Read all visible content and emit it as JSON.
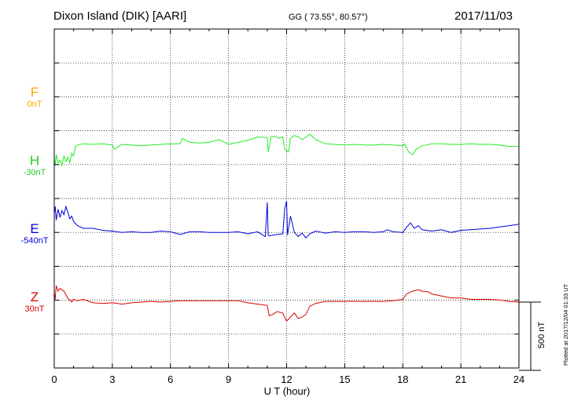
{
  "header": {
    "station": "Dixon Island (DIK)  [AARI]",
    "coords": "GG ( 73.55°,  80.57°)",
    "date": "2017/11/03"
  },
  "plotted_note": "Plotted at 2017/12/04 01:33 UT",
  "chart_data": {
    "type": "line",
    "xlabel": "U T (hour)",
    "xlim": [
      0,
      24
    ],
    "xticks": [
      0,
      3,
      6,
      9,
      12,
      15,
      18,
      21,
      24
    ],
    "scale_bar": {
      "label": "500 nT",
      "value": 500
    },
    "series": [
      {
        "name": "F",
        "baseline": "0nT",
        "color": "#ffa500",
        "offset_nT": 0,
        "x": [],
        "y": []
      },
      {
        "name": "H",
        "baseline": "-30nT",
        "color": "#22ee22",
        "offset_nT": -400,
        "x": [
          0,
          0.05,
          0.1,
          0.2,
          0.3,
          0.4,
          0.5,
          0.6,
          0.7,
          0.8,
          0.9,
          1.0,
          1.1,
          1.2,
          1.5,
          2,
          2.5,
          3,
          3.1,
          3.5,
          4,
          4.5,
          5,
          5.5,
          6,
          6.5,
          6.6,
          7,
          7.5,
          8,
          8.5,
          9,
          9.5,
          10,
          10.5,
          11,
          11.05,
          11.2,
          11.4,
          11.6,
          11.8,
          11.9,
          12,
          12.1,
          12.2,
          12.4,
          12.6,
          12.8,
          13,
          13.2,
          13.5,
          14,
          14.5,
          15,
          15.5,
          16,
          16.5,
          17,
          17.5,
          18,
          18.1,
          18.3,
          18.5,
          18.7,
          19,
          19.5,
          20,
          20.5,
          21,
          21.5,
          22,
          22.5,
          23,
          23.5,
          24
        ],
        "y": [
          -450,
          -500,
          -420,
          -480,
          -460,
          -500,
          -430,
          -470,
          -440,
          -480,
          -410,
          -430,
          -360,
          -350,
          -340,
          -345,
          -340,
          -350,
          -380,
          -345,
          -350,
          -355,
          -350,
          -345,
          -340,
          -340,
          -300,
          -330,
          -335,
          -330,
          -310,
          -345,
          -330,
          -315,
          -290,
          -295,
          -400,
          -290,
          -285,
          -300,
          -290,
          -380,
          -390,
          -400,
          -300,
          -280,
          -290,
          -310,
          -290,
          -270,
          -310,
          -340,
          -345,
          -350,
          -345,
          -350,
          -350,
          -345,
          -350,
          -355,
          -340,
          -400,
          -420,
          -380,
          -355,
          -340,
          -340,
          -345,
          -345,
          -340,
          -345,
          -345,
          -350,
          -360,
          -360
        ]
      },
      {
        "name": "E",
        "baseline": "-540nT",
        "color": "#0000dd",
        "offset_nT": -1000,
        "x": [
          0,
          0.05,
          0.1,
          0.2,
          0.3,
          0.4,
          0.5,
          0.6,
          0.7,
          0.8,
          0.9,
          1.0,
          1.2,
          1.5,
          2,
          2.5,
          3,
          3.5,
          4,
          4.5,
          5,
          5.5,
          6,
          6.5,
          7,
          7.5,
          8,
          8.5,
          9,
          9.5,
          10,
          10.5,
          10.9,
          11,
          11.05,
          11.1,
          11.5,
          11.8,
          11.9,
          12,
          12.05,
          12.2,
          12.4,
          12.6,
          12.8,
          13,
          13.2,
          13.5,
          14,
          14.5,
          15,
          15.5,
          16,
          16.5,
          17,
          17.2,
          17.5,
          18,
          18.2,
          18.4,
          18.6,
          18.8,
          19,
          19.5,
          20,
          20.5,
          21,
          21.5,
          22,
          22.5,
          23,
          23.5,
          24
        ],
        "y": [
          -850,
          -800,
          -900,
          -820,
          -880,
          -830,
          -860,
          -800,
          -840,
          -890,
          -870,
          -910,
          -940,
          -960,
          -960,
          -975,
          -980,
          -990,
          -985,
          -990,
          -990,
          -980,
          -985,
          -1005,
          -985,
          -985,
          -990,
          -990,
          -990,
          -985,
          -1000,
          -985,
          -1020,
          -770,
          -1010,
          -1015,
          -1005,
          -1000,
          -820,
          -760,
          -1010,
          -870,
          -990,
          -1020,
          -995,
          -1030,
          -1000,
          -980,
          -995,
          -985,
          -990,
          -985,
          -985,
          -990,
          -985,
          -970,
          -985,
          -990,
          -950,
          -920,
          -960,
          -940,
          -970,
          -980,
          -970,
          -990,
          -975,
          -970,
          -965,
          -960,
          -950,
          -940,
          -930
        ]
      },
      {
        "name": "Z",
        "baseline": "30nT",
        "color": "#dd0000",
        "offset_nT": -1500,
        "x": [
          0,
          0.05,
          0.1,
          0.2,
          0.3,
          0.5,
          0.7,
          0.9,
          1.0,
          1.2,
          1.5,
          2,
          2.5,
          3,
          3.5,
          4,
          4.5,
          5,
          5.5,
          6,
          6.5,
          7,
          8,
          9,
          9.5,
          10,
          10.5,
          11,
          11.1,
          11.3,
          11.5,
          11.8,
          12,
          12.2,
          12.4,
          12.6,
          12.8,
          13,
          13.2,
          13.5,
          14,
          14.5,
          15,
          15.5,
          16,
          16.5,
          17,
          17.5,
          18,
          18.2,
          18.5,
          18.8,
          19,
          19.3,
          19.5,
          20,
          20.5,
          21,
          21.5,
          22,
          22.5,
          23,
          23.5,
          24
        ],
        "y": [
          -1430,
          -1480,
          -1380,
          -1420,
          -1400,
          -1420,
          -1470,
          -1500,
          -1480,
          -1490,
          -1480,
          -1505,
          -1510,
          -1505,
          -1515,
          -1505,
          -1500,
          -1495,
          -1500,
          -1495,
          -1490,
          -1490,
          -1490,
          -1490,
          -1490,
          -1505,
          -1515,
          -1525,
          -1600,
          -1590,
          -1570,
          -1580,
          -1640,
          -1610,
          -1580,
          -1620,
          -1610,
          -1590,
          -1530,
          -1510,
          -1495,
          -1495,
          -1495,
          -1495,
          -1495,
          -1495,
          -1495,
          -1490,
          -1480,
          -1440,
          -1420,
          -1410,
          -1420,
          -1425,
          -1440,
          -1455,
          -1470,
          -1470,
          -1480,
          -1480,
          -1480,
          -1485,
          -1495,
          -1500
        ]
      }
    ]
  }
}
